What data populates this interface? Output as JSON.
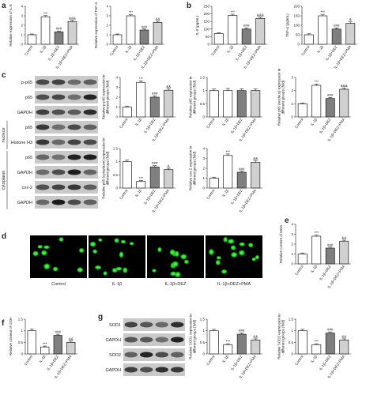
{
  "panels": [
    "a",
    "b",
    "c",
    "d",
    "e",
    "f",
    "g"
  ],
  "blots": {
    "c": [
      "p-p65",
      "p65",
      "GAPDH",
      "p65",
      "Histone H3",
      "p65",
      "GAPDH",
      "cox-2",
      "GAPDH"
    ],
    "g": [
      "SOD1",
      "GAPDH",
      "SOD2",
      "GAPDH"
    ]
  },
  "groups": [
    "nucleus",
    "cytoplasm"
  ],
  "images": [
    "Control",
    "IL-1β",
    "IL-1β+DEZ",
    "IL-1β+DEZ+PMA"
  ],
  "chart_data": [
    {
      "type": "bar",
      "ylabel": [
        "Relative expression of IL-6"
      ],
      "categories": [
        "Control",
        "IL-1β",
        "IL-1β+DEZ",
        "IL-1β+DEZ+PMA"
      ],
      "values": [
        1,
        2.9,
        1.3,
        2.4
      ],
      "errors": [
        0.08,
        0.12,
        0.1,
        0.1
      ],
      "annotations": [
        null,
        "***",
        "###",
        "&&&"
      ],
      "colors": [
        "#ffffff",
        "#ffffff",
        "#7f7f7f",
        "#d0d0d0"
      ],
      "ylim": [
        0,
        4
      ],
      "yticks": [
        0,
        1,
        2,
        3,
        4
      ]
    },
    {
      "type": "bar",
      "ylabel": [
        "Relative expression of TNF-α"
      ],
      "categories": [
        "Control",
        "IL-1β",
        "IL-1β+DEZ",
        "IL-1β+DEZ+PMA"
      ],
      "values": [
        1,
        3,
        1.5,
        2.3
      ],
      "errors": [
        0.08,
        0.12,
        0.1,
        0.12
      ],
      "annotations": [
        null,
        "***",
        "###",
        "&&"
      ],
      "colors": [
        "#ffffff",
        "#ffffff",
        "#7f7f7f",
        "#d0d0d0"
      ],
      "ylim": [
        0,
        4
      ],
      "yticks": [
        0,
        1,
        2,
        3,
        4
      ]
    },
    {
      "type": "bar",
      "ylabel": [
        "IL-6 (pg/mL)"
      ],
      "categories": [
        "Control",
        "IL-1β",
        "IL-1β+DEZ",
        "IL-1β+DEZ+PMA"
      ],
      "values": [
        70,
        190,
        100,
        170
      ],
      "errors": [
        6,
        8,
        7,
        8
      ],
      "annotations": [
        null,
        "***",
        "###",
        "&&&"
      ],
      "colors": [
        "#ffffff",
        "#ffffff",
        "#7f7f7f",
        "#d0d0d0"
      ],
      "ylim": [
        0,
        250
      ],
      "yticks": [
        0,
        50,
        100,
        150,
        200,
        250
      ]
    },
    {
      "type": "bar",
      "ylabel": [
        "TNF-α (pg/mL)"
      ],
      "categories": [
        "Control",
        "IL-1β",
        "IL-1β+DEZ",
        "IL-1β+DEZ+PMA"
      ],
      "values": [
        50,
        150,
        80,
        110
      ],
      "errors": [
        5,
        8,
        6,
        8
      ],
      "annotations": [
        null,
        "***",
        "###",
        "&"
      ],
      "colors": [
        "#ffffff",
        "#ffffff",
        "#7f7f7f",
        "#d0d0d0"
      ],
      "ylim": [
        0,
        200
      ],
      "yticks": [
        0,
        50,
        100,
        150,
        200
      ]
    },
    {
      "type": "bar",
      "ylabel": [
        "Relative p-p65 expression in",
        "different groups (fold)"
      ],
      "categories": [
        "Control",
        "IL-1β",
        "IL-1β+DEZ",
        "IL-1β+DEZ+PMA"
      ],
      "values": [
        1,
        3.5,
        2,
        2.7
      ],
      "errors": [
        0.1,
        0.15,
        0.12,
        0.15
      ],
      "annotations": [
        null,
        "***",
        "###",
        "&&"
      ],
      "colors": [
        "#ffffff",
        "#ffffff",
        "#7f7f7f",
        "#d0d0d0"
      ],
      "ylim": [
        0,
        4
      ],
      "yticks": [
        0,
        1,
        2,
        3,
        4
      ]
    },
    {
      "type": "bar",
      "ylabel": [
        "Relative p65 expression in",
        "different groups (fold)"
      ],
      "categories": [
        "Control",
        "IL-1β",
        "IL-1β+DEZ",
        "IL-1β+DEZ+PMA"
      ],
      "values": [
        1,
        1,
        1,
        1
      ],
      "errors": [
        0.06,
        0.08,
        0.07,
        0.06
      ],
      "annotations": [
        null,
        null,
        null,
        null
      ],
      "colors": [
        "#ffffff",
        "#ffffff",
        "#7f7f7f",
        "#d0d0d0"
      ],
      "ylim": [
        0,
        1.5
      ],
      "yticks": [
        0,
        0.5,
        1,
        1.5
      ]
    },
    {
      "type": "bar",
      "ylabel": [
        "Relative p65 (nucleus) expression in",
        "different groups (fold)"
      ],
      "categories": [
        "Control",
        "IL-1β",
        "IL-1β+DEZ",
        "IL-1β+DEZ+PMA"
      ],
      "values": [
        1,
        2.4,
        1.4,
        2.1
      ],
      "errors": [
        0.06,
        0.1,
        0.08,
        0.1
      ],
      "annotations": [
        null,
        "***",
        "###",
        "&&&"
      ],
      "colors": [
        "#ffffff",
        "#ffffff",
        "#7f7f7f",
        "#d0d0d0"
      ],
      "ylim": [
        0,
        3
      ],
      "yticks": [
        0,
        1,
        2,
        3
      ]
    },
    {
      "type": "bar",
      "ylabel": [
        "Relative p65 (cytoplasm) expression in",
        "different groups (fold)"
      ],
      "categories": [
        "Control",
        "IL-1β",
        "IL-1β+DEZ",
        "IL-1β+DEZ+PMA"
      ],
      "values": [
        1,
        0.25,
        0.8,
        0.7
      ],
      "errors": [
        0.06,
        0.04,
        0.05,
        0.05
      ],
      "annotations": [
        null,
        "***",
        "###",
        "&"
      ],
      "colors": [
        "#ffffff",
        "#ffffff",
        "#7f7f7f",
        "#d0d0d0"
      ],
      "ylim": [
        0,
        1.5
      ],
      "yticks": [
        0,
        0.5,
        1,
        1.5
      ]
    },
    {
      "type": "bar",
      "ylabel": [
        "Relative cox-2 expression in",
        "different groups (fold)"
      ],
      "categories": [
        "Control",
        "IL-1β",
        "IL-1β+DEZ",
        "IL-1β+DEZ+PMA"
      ],
      "values": [
        1,
        3.3,
        1.6,
        2.6
      ],
      "errors": [
        0.1,
        0.15,
        0.1,
        0.15
      ],
      "annotations": [
        null,
        "***",
        "###",
        "&&"
      ],
      "colors": [
        "#ffffff",
        "#ffffff",
        "#7f7f7f",
        "#d0d0d0"
      ],
      "ylim": [
        0,
        4
      ],
      "yticks": [
        0,
        1,
        2,
        3,
        4
      ]
    },
    {
      "type": "bar",
      "ylabel": [
        "Relative content of MDA"
      ],
      "categories": [
        "Control",
        "IL-1β",
        "IL-1β+DEZ",
        "IL-1β+DEZ+PMA"
      ],
      "values": [
        1,
        2.8,
        1.6,
        2.3
      ],
      "errors": [
        0.1,
        0.12,
        0.1,
        0.1
      ],
      "annotations": [
        null,
        "***",
        "###",
        "&&"
      ],
      "colors": [
        "#ffffff",
        "#ffffff",
        "#7f7f7f",
        "#d0d0d0"
      ],
      "ylim": [
        0,
        4
      ],
      "yticks": [
        0,
        1,
        2,
        3,
        4
      ]
    },
    {
      "type": "bar",
      "ylabel": [
        "Relative content of GSH"
      ],
      "categories": [
        "Control",
        "IL-1β",
        "IL-1β+DEZ",
        "IL-1β+DEZ+PMA"
      ],
      "values": [
        1,
        0.3,
        0.8,
        0.5
      ],
      "errors": [
        0.07,
        0.04,
        0.05,
        0.05
      ],
      "annotations": [
        null,
        "***",
        "###",
        "&&"
      ],
      "colors": [
        "#ffffff",
        "#ffffff",
        "#7f7f7f",
        "#d0d0d0"
      ],
      "ylim": [
        0,
        1.5
      ],
      "yticks": [
        0,
        0.5,
        1,
        1.5
      ]
    },
    {
      "type": "bar",
      "ylabel": [
        "Relative SOD1 expression in",
        "different groups (fold)"
      ],
      "categories": [
        "Control",
        "IL-1β",
        "IL-1β+DEZ",
        "IL-1β+DEZ+PMA"
      ],
      "values": [
        1,
        0.4,
        0.85,
        0.6
      ],
      "errors": [
        0.06,
        0.04,
        0.05,
        0.05
      ],
      "annotations": [
        null,
        "***",
        "###",
        "&&"
      ],
      "colors": [
        "#ffffff",
        "#ffffff",
        "#7f7f7f",
        "#d0d0d0"
      ],
      "ylim": [
        0,
        1.5
      ],
      "yticks": [
        0,
        0.5,
        1,
        1.5
      ]
    },
    {
      "type": "bar",
      "ylabel": [
        "Relative SOD2 expression in",
        "different groups (fold)"
      ],
      "categories": [
        "Control",
        "IL-1β",
        "IL-1β+DEZ",
        "IL-1β+DEZ+PMA"
      ],
      "values": [
        1,
        0.4,
        0.9,
        0.6
      ],
      "errors": [
        0.06,
        0.04,
        0.05,
        0.05
      ],
      "annotations": [
        null,
        "***",
        "###",
        "&&"
      ],
      "colors": [
        "#ffffff",
        "#ffffff",
        "#7f7f7f",
        "#d0d0d0"
      ],
      "ylim": [
        0,
        1.5
      ],
      "yticks": [
        0,
        0.5,
        1,
        1.5
      ]
    }
  ]
}
